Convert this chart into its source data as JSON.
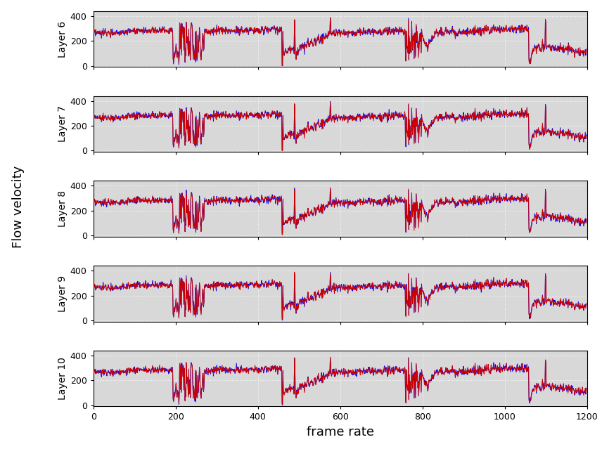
{
  "n_layers": 5,
  "layer_labels": [
    "Layer 6",
    "Layer 7",
    "Layer 8",
    "Layer 9",
    "Layer 10"
  ],
  "x_max": 1200,
  "y_ticks": [
    0,
    200,
    400
  ],
  "y_lim": [
    -10,
    440
  ],
  "x_ticks": [
    0,
    200,
    400,
    600,
    800,
    1000,
    1200
  ],
  "xlabel": "frame rate",
  "ylabel": "Flow velocity",
  "line1_color": "#0000ff",
  "line2_color": "#cc0000",
  "line_width": 0.7,
  "bg_color": "#d8d8d8",
  "grid_color": "#ffffff",
  "title_fontsize": 10,
  "label_fontsize": 13,
  "tick_fontsize": 9,
  "fig_width": 8.56,
  "fig_height": 6.39
}
